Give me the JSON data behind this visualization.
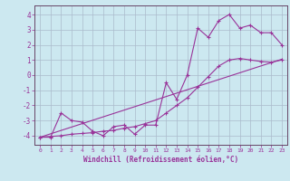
{
  "background_color": "#cce8f0",
  "grid_color": "#aabbcc",
  "line_color": "#993399",
  "spine_color": "#664466",
  "xlim": [
    -0.5,
    23.5
  ],
  "ylim": [
    -4.6,
    4.6
  ],
  "xticks": [
    0,
    1,
    2,
    3,
    4,
    5,
    6,
    7,
    8,
    9,
    10,
    11,
    12,
    13,
    14,
    15,
    16,
    17,
    18,
    19,
    20,
    21,
    22,
    23
  ],
  "yticks": [
    -4,
    -3,
    -2,
    -1,
    0,
    1,
    2,
    3,
    4
  ],
  "xlabel": "Windchill (Refroidissement éolien,°C)",
  "line1_x": [
    0,
    1,
    2,
    3,
    4,
    5,
    6,
    7,
    8,
    9,
    10,
    11,
    12,
    13,
    14,
    15,
    16,
    17,
    18,
    19,
    20,
    21,
    22,
    23
  ],
  "line1_y": [
    -4.1,
    -4.05,
    -4.0,
    -3.9,
    -3.85,
    -3.8,
    -3.7,
    -3.65,
    -3.5,
    -3.4,
    -3.2,
    -3.0,
    -2.5,
    -2.0,
    -1.5,
    -0.8,
    -0.1,
    0.6,
    1.0,
    1.1,
    1.0,
    0.9,
    0.85,
    1.0
  ],
  "line2_x": [
    0,
    1,
    2,
    3,
    4,
    5,
    6,
    7,
    8,
    9,
    10,
    11,
    12,
    13,
    14,
    15,
    16,
    17,
    18,
    19,
    20,
    21,
    22,
    23
  ],
  "line2_y": [
    -4.1,
    -4.1,
    -2.5,
    -3.0,
    -3.1,
    -3.7,
    -4.0,
    -3.4,
    -3.3,
    -3.9,
    -3.3,
    -3.3,
    -0.5,
    -1.6,
    0.0,
    3.1,
    2.5,
    3.6,
    4.0,
    3.1,
    3.3,
    2.8,
    2.8,
    2.0
  ],
  "line3_x": [
    0,
    23
  ],
  "line3_y": [
    -4.1,
    1.05
  ]
}
